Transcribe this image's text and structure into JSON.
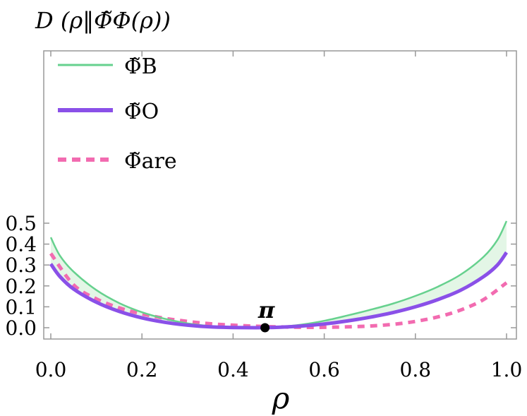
{
  "chart_data": {
    "type": "line",
    "ylabel": "D (ρ‖Φ̃Φ(ρ))",
    "xlabel": "ρ",
    "xlim": [
      0.0,
      1.0
    ],
    "ylim": [
      -0.03,
      0.53
    ],
    "x_ticks": [
      "0.0",
      "0.2",
      "0.4",
      "0.6",
      "0.8",
      "1.0"
    ],
    "y_ticks": [
      "0.0",
      "0.1",
      "0.2",
      "0.3",
      "0.4",
      "0.5"
    ],
    "legend_position": "top-left",
    "shaded_region": {
      "between": [
        "Φ̃B",
        "Φ̃O"
      ],
      "color": "#e3f6e6"
    },
    "series": [
      {
        "name": "Φ̃B",
        "color": "#66d18e",
        "style": "solid",
        "x": [
          0.0,
          0.02,
          0.05,
          0.1,
          0.15,
          0.2,
          0.25,
          0.3,
          0.35,
          0.4,
          0.45,
          0.5,
          0.55,
          0.6,
          0.65,
          0.7,
          0.75,
          0.8,
          0.85,
          0.9,
          0.95,
          0.98,
          1.0
        ],
        "values": [
          0.432,
          0.345,
          0.268,
          0.18,
          0.118,
          0.074,
          0.043,
          0.021,
          0.008,
          0.002,
          0.0,
          0.004,
          0.015,
          0.033,
          0.058,
          0.085,
          0.115,
          0.152,
          0.197,
          0.255,
          0.34,
          0.42,
          0.51
        ]
      },
      {
        "name": "Φ̃O",
        "color": "#8a50e8",
        "style": "solid",
        "x": [
          0.0,
          0.02,
          0.05,
          0.1,
          0.15,
          0.2,
          0.25,
          0.3,
          0.35,
          0.4,
          0.45,
          0.5,
          0.55,
          0.6,
          0.65,
          0.7,
          0.75,
          0.8,
          0.85,
          0.9,
          0.95,
          0.98,
          1.0
        ],
        "values": [
          0.305,
          0.245,
          0.185,
          0.122,
          0.078,
          0.047,
          0.026,
          0.012,
          0.004,
          0.001,
          0.0,
          0.002,
          0.008,
          0.018,
          0.032,
          0.05,
          0.072,
          0.1,
          0.135,
          0.18,
          0.245,
          0.3,
          0.36
        ]
      },
      {
        "name": "Φ̃are",
        "color": "#f26bb0",
        "style": "dashed",
        "x": [
          0.0,
          0.05,
          0.1,
          0.15,
          0.2,
          0.25,
          0.3,
          0.35,
          0.4,
          0.45,
          0.5,
          0.55,
          0.6,
          0.65,
          0.7,
          0.75,
          0.8,
          0.85,
          0.9,
          0.95,
          1.0
        ],
        "values": [
          0.355,
          0.205,
          0.138,
          0.095,
          0.066,
          0.045,
          0.03,
          0.019,
          0.012,
          0.007,
          0.004,
          0.002,
          0.002,
          0.004,
          0.008,
          0.016,
          0.03,
          0.052,
          0.085,
          0.135,
          0.215
        ]
      }
    ],
    "annotations": [
      {
        "label": "π",
        "x": 0.47,
        "y": 0.0
      }
    ]
  }
}
